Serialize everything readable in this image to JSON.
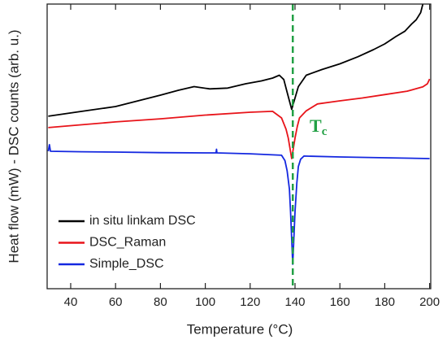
{
  "chart_data": {
    "type": "line",
    "xlabel": "Temperature (°C)",
    "ylabel": "Heat flow (mW) - DSC counts (arb. u.)",
    "xlim": [
      29.5,
      200.5
    ],
    "ylim": [
      0,
      100
    ],
    "xticks": [
      40,
      60,
      80,
      100,
      120,
      140,
      160,
      180,
      200
    ],
    "legend": "lower left",
    "annotation": {
      "text": "T",
      "subscript": "c",
      "x": 139,
      "color": "#22a045"
    },
    "series": [
      {
        "name": "in situ linkam DSC",
        "color": "#000000",
        "x": [
          30,
          45,
          60,
          70,
          80,
          88,
          95,
          102,
          110,
          118,
          125,
          130,
          133,
          135,
          136.5,
          138.5,
          140,
          141.5,
          145,
          152,
          160,
          168,
          175,
          180,
          185,
          189,
          192,
          194,
          196,
          197
        ],
        "values": [
          60.6,
          62.3,
          64,
          66,
          68,
          69.7,
          71,
          70.2,
          70.5,
          72,
          73,
          74,
          75,
          73.5,
          69,
          63,
          67,
          71,
          75,
          77,
          79,
          81.5,
          84,
          86,
          88.6,
          90.5,
          93,
          94.5,
          97,
          100
        ]
      },
      {
        "name": "DSC_Raman",
        "color": "#e8141a",
        "x": [
          30,
          45,
          60,
          80,
          100,
          120,
          130,
          134,
          136,
          137,
          138.5,
          140,
          141,
          142,
          145,
          150,
          160,
          170,
          180,
          190,
          197,
          199,
          200
        ],
        "values": [
          56.6,
          57.6,
          58.6,
          59.7,
          61,
          62,
          62.3,
          60,
          56,
          52.9,
          45.7,
          52.9,
          57,
          60,
          62.5,
          64.9,
          66,
          67,
          68.2,
          69.4,
          70.9,
          72,
          73.7
        ]
      },
      {
        "name": "Simple_DSC",
        "color": "#1428e0",
        "x": [
          30,
          30.5,
          31,
          45,
          60,
          80,
          100,
          104.8,
          105,
          105.2,
          120,
          134,
          135.5,
          136.5,
          137.5,
          138,
          139,
          140,
          140.8,
          141.5,
          142.5,
          144,
          160,
          180,
          200
        ],
        "values": [
          48.3,
          50.6,
          48.3,
          48.1,
          48,
          47.8,
          47.7,
          47.7,
          49,
          47.7,
          47.4,
          46.9,
          45,
          41.4,
          35,
          27,
          8.6,
          27,
          37,
          42.9,
          45.5,
          46.6,
          46.3,
          46,
          45.7
        ]
      }
    ]
  }
}
